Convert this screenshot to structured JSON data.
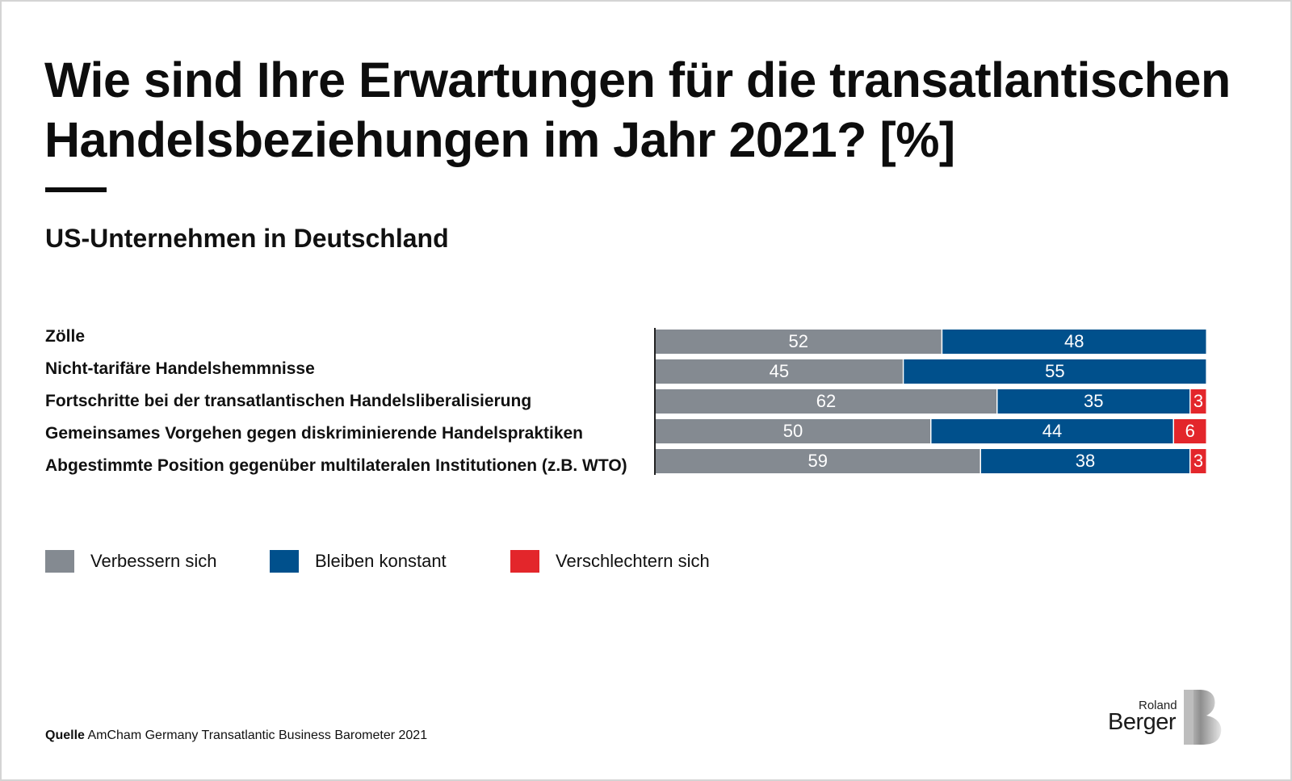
{
  "title": "Wie sind Ihre Erwartungen für die transatlantischen Handelsbeziehungen im Jahr 2021? [%]",
  "subtitle": "US-Unternehmen in Deutschland",
  "source": {
    "label": "Quelle",
    "text": "AmCham Germany Transatlantic Business Barometer 2021"
  },
  "logo": {
    "small_text": "Roland",
    "big_text": "Berger",
    "mark_icon": "roland-berger-b-logo"
  },
  "colors": {
    "improve": "#848a91",
    "constant": "#00508c",
    "worsen": "#e3262b"
  },
  "legend": [
    {
      "label": "Verbessern sich",
      "color": "#848a91"
    },
    {
      "label": "Bleiben konstant",
      "color": "#00508c"
    },
    {
      "label": "Verschlechtern sich",
      "color": "#e3262b"
    }
  ],
  "chart_data": {
    "type": "bar",
    "orientation": "horizontal",
    "stacked": true,
    "title": "Wie sind Ihre Erwartungen für die transatlantischen Handelsbeziehungen im Jahr 2021? [%]",
    "subtitle": "US-Unternehmen in Deutschland",
    "xlabel": "",
    "ylabel": "",
    "xlim": [
      0,
      100
    ],
    "grid": false,
    "legend_position": "bottom-left",
    "categories": [
      "Zölle",
      "Nicht-tarifäre Handelshemmnisse",
      "Fortschritte bei der transatlantischen Handelsliberalisierung",
      "Gemeinsames Vorgehen gegen diskriminierende Handelspraktiken",
      "Abgestimmte Position gegenüber multilateralen Institutionen (z.B. WTO)"
    ],
    "series": [
      {
        "name": "Verbessern sich",
        "color": "#848a91",
        "values": [
          52,
          45,
          62,
          50,
          59
        ]
      },
      {
        "name": "Bleiben konstant",
        "color": "#00508c",
        "values": [
          48,
          55,
          35,
          44,
          38
        ]
      },
      {
        "name": "Verschlechtern sich",
        "color": "#e3262b",
        "values": [
          0,
          0,
          3,
          6,
          3
        ]
      }
    ]
  }
}
